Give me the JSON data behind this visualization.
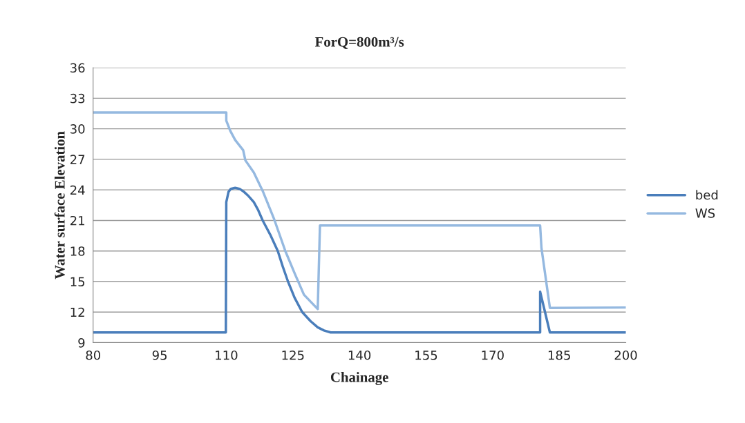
{
  "chart_data": {
    "type": "line",
    "title": "ForQ=800m³/s",
    "xlabel": "Chainage",
    "ylabel": "Water surface Elevation",
    "xlim": [
      80,
      200
    ],
    "xticks": [
      80,
      95,
      110,
      125,
      140,
      155,
      170,
      185,
      200
    ],
    "ylim": [
      9,
      36
    ],
    "yticks": [
      9,
      12,
      15,
      18,
      21,
      24,
      27,
      30,
      33,
      36
    ],
    "grid": "y",
    "legend": "right",
    "series": [
      {
        "name": "bed",
        "color": "#4a7ebb",
        "x": [
          80,
          109.9,
          110,
          110.5,
          111,
          112,
          113,
          114,
          115,
          116.2,
          117.2,
          118.2,
          119.9,
          121.6,
          122.7,
          123.9,
          125.4,
          127.1,
          129,
          130.6,
          132,
          133.5,
          180.7,
          180.7,
          182.9,
          200
        ],
        "values": [
          10,
          10,
          22.8,
          23.8,
          24.1,
          24.2,
          24.1,
          23.8,
          23.4,
          22.8,
          22,
          21,
          19.6,
          18,
          16.5,
          15,
          13.4,
          12,
          11.1,
          10.5,
          10.2,
          10,
          10,
          14,
          10,
          10
        ]
      },
      {
        "name": "WS",
        "color": "#95b9e0",
        "x": [
          80,
          110,
          110,
          110.9,
          112,
          113.8,
          114.3,
          116.2,
          118.2,
          120.8,
          123.3,
          125.5,
          127.5,
          130.6,
          131.1,
          180.7,
          181,
          182.9,
          200
        ],
        "values": [
          31.6,
          31.6,
          30.8,
          29.8,
          28.9,
          27.9,
          26.9,
          25.7,
          23.9,
          21.1,
          18,
          15.7,
          13.7,
          12.3,
          20.5,
          20.5,
          18.3,
          12.4,
          12.45
        ]
      }
    ]
  }
}
